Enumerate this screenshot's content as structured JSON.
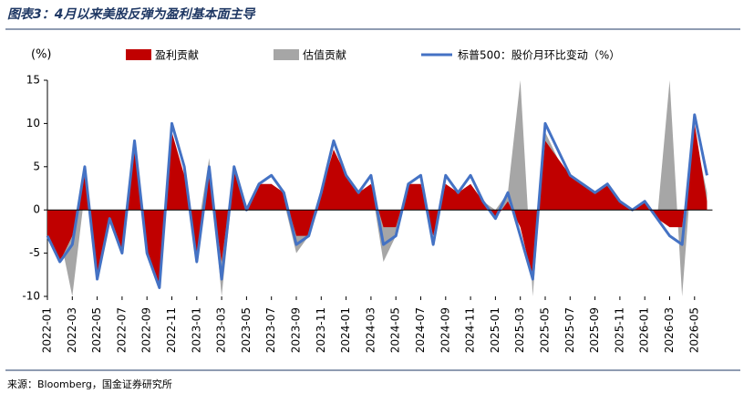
{
  "chart_data": {
    "type": "area-line",
    "title": "图表3：4月以来美股反弹为盈利基本面主导",
    "y_label": "(%)",
    "source": "来源：Bloomberg，国金证券研究所",
    "categories": [
      "2022-01",
      null,
      "2022-03",
      null,
      "2022-05",
      null,
      "2022-07",
      null,
      "2022-09",
      null,
      "2022-11",
      null,
      "2023-01",
      null,
      "2023-03",
      null,
      "2023-05",
      null,
      "2023-07",
      null,
      "2023-09",
      null,
      "2023-11",
      null,
      "2024-01",
      null,
      "2024-03",
      null,
      "2024-05",
      null,
      "2024-07",
      null,
      "2024-09",
      null,
      "2024-11",
      null,
      "2025-01",
      null,
      "2025-03",
      null,
      "2025-05",
      null,
      "2025-07",
      null,
      "2025-09",
      null,
      "2025-11",
      null,
      "2026-01",
      null,
      "2026-03",
      null,
      "2026-05",
      null
    ],
    "series": [
      {
        "name": "盈利贡献",
        "color": "#c00000",
        "kind": "area",
        "values": [
          -3,
          -6,
          -3,
          4,
          -8,
          -1,
          -5,
          7,
          -5,
          -9,
          9,
          4,
          -5,
          4,
          -6,
          5,
          0,
          3,
          3,
          2,
          -3,
          -3,
          2,
          7,
          4,
          2,
          3,
          -2,
          -2,
          3,
          3,
          -3,
          3,
          2,
          3,
          1,
          -1,
          1,
          -2,
          -8,
          8,
          6,
          4,
          3,
          2,
          3,
          1,
          0,
          1,
          -1,
          -2,
          -2,
          10,
          1
        ]
      },
      {
        "name": "估值贡献",
        "color": "#a6a6a6",
        "kind": "area",
        "values": [
          -1,
          -3,
          -10,
          2,
          -4,
          0,
          -3,
          5,
          -3,
          -8,
          8,
          3,
          -3,
          6,
          -10,
          4,
          0,
          2,
          3,
          1,
          -5,
          -3,
          1,
          6,
          3,
          1,
          3,
          -6,
          -3,
          2,
          3,
          -3,
          3,
          1,
          3,
          1,
          0,
          2,
          15,
          -10,
          9,
          6,
          3,
          2,
          2,
          2,
          1,
          0,
          1,
          -1,
          15,
          -10,
          9,
          2
        ]
      },
      {
        "name": "标普500：股价月环比变动（%）",
        "color": "#4472c4",
        "kind": "line",
        "values": [
          -3,
          -6,
          -4,
          5,
          -8,
          -1,
          -5,
          8,
          -5,
          -9,
          10,
          5,
          -6,
          5,
          -8,
          5,
          0,
          3,
          4,
          2,
          -4,
          -3,
          2,
          8,
          4,
          2,
          4,
          -4,
          -3,
          3,
          4,
          -4,
          4,
          2,
          4,
          1,
          -1,
          2,
          -3,
          -8,
          10,
          7,
          4,
          3,
          2,
          3,
          1,
          0,
          1,
          -1,
          -3,
          -4,
          11,
          4
        ]
      }
    ],
    "ylim": [
      -10,
      15
    ],
    "yticks": [
      -10,
      -5,
      0,
      5,
      10,
      15
    ]
  }
}
